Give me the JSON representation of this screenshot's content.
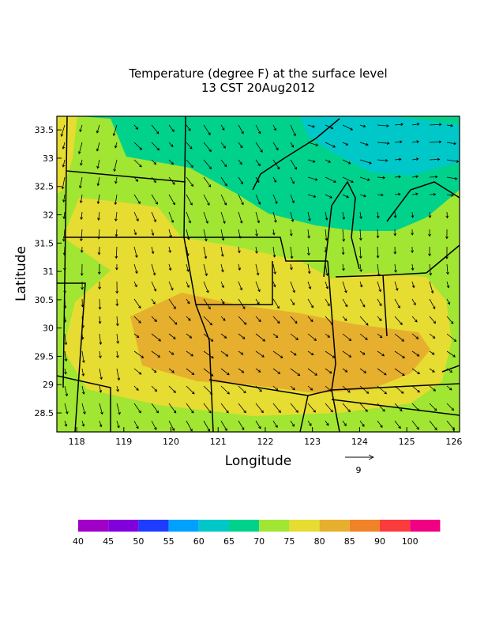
{
  "map": {
    "title": [
      "Temperature (degree F) at the surface level",
      "13 CST 20Aug2012"
    ],
    "x_label": "Longitude",
    "y_label": "Latitude",
    "xlim": [
      117.58,
      126.12
    ],
    "ylim": [
      28.165,
      33.74
    ],
    "xticks": [
      118,
      119,
      120,
      121,
      122,
      123,
      124,
      125,
      126
    ],
    "yticks": [
      28.5,
      29,
      29.5,
      30,
      30.5,
      31,
      31.5,
      32,
      32.5,
      33,
      33.5
    ],
    "colorbar": {
      "labels": [
        40,
        45,
        50,
        55,
        60,
        65,
        70,
        75,
        80,
        85,
        90,
        100
      ],
      "colors": [
        "#a000c8",
        "#8200dc",
        "#1e3cff",
        "#00a0ff",
        "#00c8c8",
        "#00d28c",
        "#a0e632",
        "#e6dc32",
        "#e6af2d",
        "#f08228",
        "#fa3c3c",
        "#f00082"
      ]
    },
    "reference_vector": 9
  }
}
